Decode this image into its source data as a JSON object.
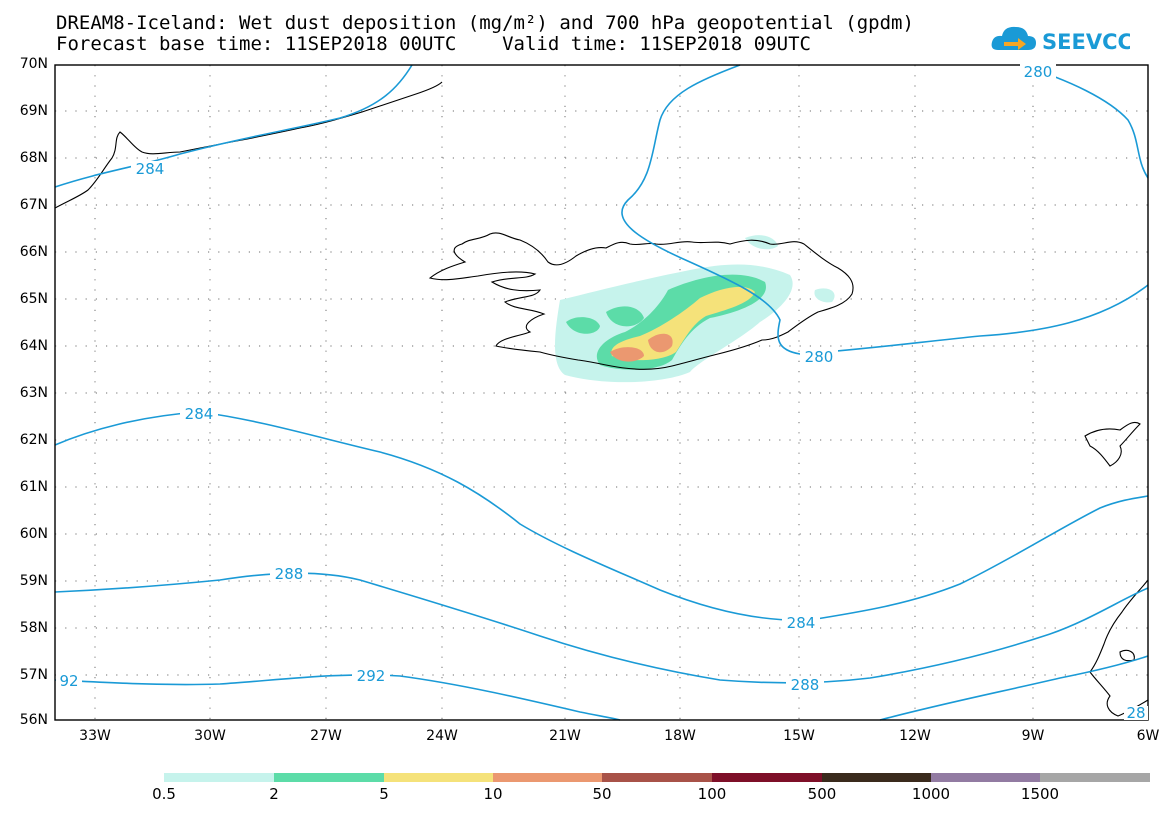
{
  "title": {
    "line1": "DREAM8-Iceland: Wet dust deposition (mg/m²) and 700 hPa geopotential (gpdm)",
    "line2": "Forecast base time: 11SEP2018 00UTC    Valid time: 11SEP2018 09UTC"
  },
  "logo": {
    "text": "SEEVCCC",
    "icon": "cloud-arrow-icon",
    "color": "#1a9ad6"
  },
  "axes": {
    "lat_labels": [
      "70N",
      "69N",
      "68N",
      "67N",
      "66N",
      "65N",
      "64N",
      "63N",
      "62N",
      "61N",
      "60N",
      "59N",
      "58N",
      "57N",
      "56N"
    ],
    "lon_labels": [
      "33W",
      "30W",
      "27W",
      "24W",
      "21W",
      "18W",
      "15W",
      "12W",
      "9W",
      "6W"
    ],
    "grid": "dotted"
  },
  "contours": {
    "color": "#1a9ad6",
    "labels": [
      "284",
      "280",
      "280",
      "284",
      "288",
      "292",
      "284",
      "288",
      "92",
      "28"
    ]
  },
  "legend": {
    "labels": [
      "0.5",
      "2",
      "5",
      "10",
      "50",
      "100",
      "500",
      "1000",
      "1500"
    ],
    "colors": [
      "#c6f3ec",
      "#5cdca8",
      "#f5e27a",
      "#eb9870",
      "#a85248",
      "#7e0f28",
      "#3a2a1c",
      "#927ba2",
      "#a6a6a6"
    ]
  }
}
